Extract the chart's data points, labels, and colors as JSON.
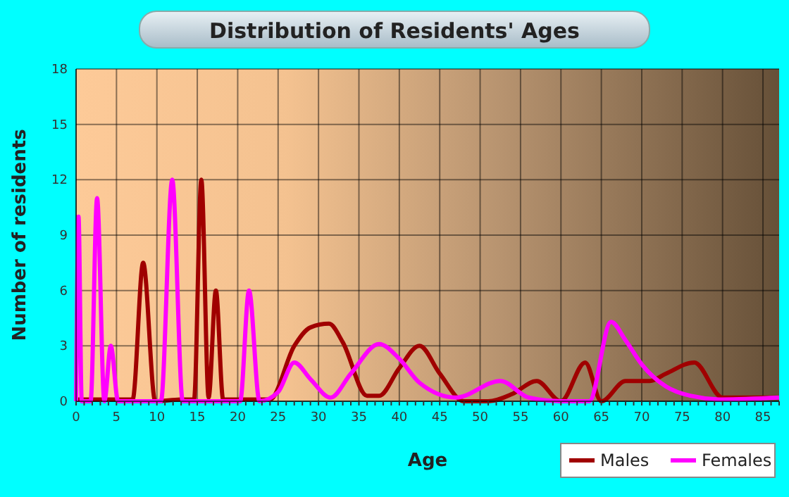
{
  "chart_data": {
    "type": "line",
    "title": "Distribution of Residents' Ages",
    "xlabel": "Age",
    "ylabel": "Number of residents",
    "xlim": [
      0,
      87
    ],
    "xticks": [
      0,
      5,
      10,
      15,
      20,
      25,
      30,
      35,
      40,
      45,
      50,
      55,
      60,
      65,
      70,
      75,
      80,
      85
    ],
    "ylim": [
      0,
      18
    ],
    "yticks": [
      0,
      3,
      6,
      9,
      12,
      15,
      18
    ],
    "grid": true,
    "legend": "bottom",
    "line_style": "solid",
    "series": [
      {
        "name": "Males",
        "color": "#a00000",
        "x": [
          0,
          7,
          8.3,
          9.8,
          13,
          14.6,
          15.5,
          16.4,
          17.3,
          18.2,
          24,
          27,
          29,
          31.3,
          33,
          36,
          37.5,
          40,
          42.5,
          45,
          48,
          51,
          54,
          57,
          60,
          63,
          65,
          68,
          71,
          73,
          76.5,
          80,
          87
        ],
        "values": [
          0.1,
          0.1,
          7.5,
          0,
          0.1,
          0.1,
          12,
          0.2,
          6,
          0.1,
          0.1,
          3,
          4,
          4.2,
          3.2,
          0.3,
          0.3,
          1.8,
          3,
          1.5,
          0,
          0,
          0.4,
          1.1,
          0,
          2.1,
          0,
          1.1,
          1.1,
          1.5,
          2.1,
          0.2,
          0.2
        ]
      },
      {
        "name": "Females",
        "color": "#ff00ff",
        "x": [
          0,
          0.3,
          0.7,
          1.8,
          2.6,
          3.5,
          4.3,
          5.2,
          10.5,
          11.9,
          13.2,
          20.3,
          21.4,
          22.7,
          25,
          27,
          29,
          31.5,
          34,
          37.5,
          40,
          42.5,
          47,
          52.5,
          56,
          60,
          63.5,
          66.2,
          68,
          70,
          73,
          76,
          80,
          87
        ],
        "values": [
          0,
          10,
          0,
          0,
          11,
          0,
          3,
          0,
          0,
          12,
          0,
          0,
          6,
          0,
          0.5,
          2.1,
          1.2,
          0.2,
          1.5,
          3.1,
          2.3,
          1,
          0.2,
          1.1,
          0.2,
          0,
          0,
          4.3,
          3.3,
          2,
          0.8,
          0.3,
          0.1,
          0.2
        ]
      }
    ]
  }
}
